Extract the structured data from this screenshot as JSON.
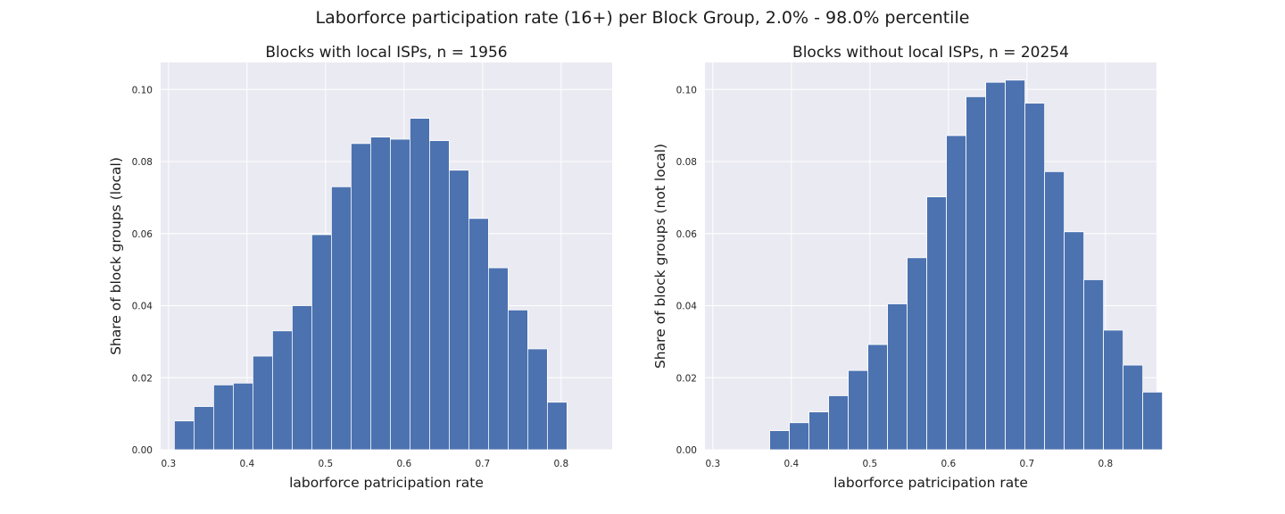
{
  "figure": {
    "title": "Laborforce participation rate (16+) per Block Group, 2.0% - 98.0% percentile"
  },
  "chart_data": [
    {
      "type": "bar",
      "title": "Blocks with local ISPs, n = 1956",
      "xlabel": "laborforce patricipation rate",
      "ylabel": "Share of block groups (local)",
      "xlim": [
        0.29,
        0.865
      ],
      "ylim": [
        0,
        0.1075
      ],
      "xticks": [
        "0.3",
        "0.4",
        "0.5",
        "0.6",
        "0.7",
        "0.8"
      ],
      "yticks": [
        "0.00",
        "0.02",
        "0.04",
        "0.06",
        "0.08",
        "0.10"
      ],
      "grid": true,
      "bar_color": "#4c72b0",
      "plot_bg": "#eaeaf2",
      "bin_edges": [
        0.3075,
        0.3325,
        0.3575,
        0.3825,
        0.4075,
        0.4325,
        0.4575,
        0.4825,
        0.5075,
        0.5325,
        0.5575,
        0.5825,
        0.6075,
        0.6325,
        0.6575,
        0.6825,
        0.7075,
        0.7325,
        0.7575,
        0.7825
      ],
      "values": [
        0.008,
        0.012,
        0.018,
        0.0185,
        0.026,
        0.033,
        0.04,
        0.0597,
        0.073,
        0.085,
        0.0868,
        0.0862,
        0.092,
        0.0858,
        0.0776,
        0.0642,
        0.0505,
        0.0388,
        0.028,
        0.0132
      ]
    },
    {
      "type": "bar",
      "title": "Blocks without local ISPs, n = 20254",
      "xlabel": "laborforce patricipation rate",
      "ylabel": "Share of block groups (not local)",
      "xlim": [
        0.29,
        0.865
      ],
      "ylim": [
        0,
        0.1075
      ],
      "xticks": [
        "0.3",
        "0.4",
        "0.5",
        "0.6",
        "0.7",
        "0.8"
      ],
      "yticks": [
        "0.00",
        "0.02",
        "0.04",
        "0.06",
        "0.08",
        "0.10"
      ],
      "grid": true,
      "bar_color": "#4c72b0",
      "plot_bg": "#eaeaf2",
      "bin_edges": [
        0.3725,
        0.3975,
        0.4225,
        0.4475,
        0.4725,
        0.4975,
        0.5225,
        0.5475,
        0.5725,
        0.5975,
        0.6225,
        0.6475,
        0.6725,
        0.6975,
        0.7225,
        0.7475,
        0.7725,
        0.7975,
        0.8225,
        0.8475
      ],
      "values": [
        0.0053,
        0.0075,
        0.0105,
        0.015,
        0.022,
        0.0292,
        0.0405,
        0.0533,
        0.0702,
        0.0872,
        0.098,
        0.102,
        0.1026,
        0.0962,
        0.0772,
        0.0605,
        0.0472,
        0.0332,
        0.0235,
        0.016
      ]
    }
  ]
}
